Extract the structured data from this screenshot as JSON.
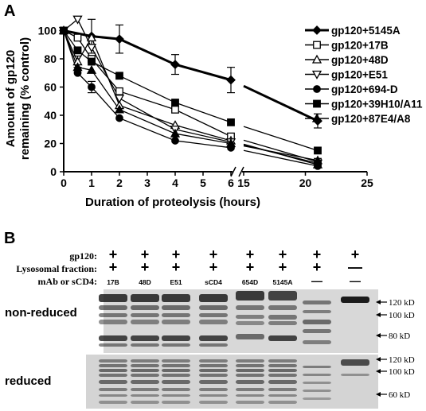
{
  "panel_a": {
    "letter": "A",
    "chart_data": {
      "type": "line",
      "xlabel": "Duration of proteolysis (hours)",
      "ylabel": "Amount of gp120 remaining (% control)",
      "ylabel_lines": [
        "Amount of gp120",
        "remaining (% control)"
      ],
      "xlim": [
        0,
        25
      ],
      "ylim": [
        0,
        100
      ],
      "x_axis_break": [
        6,
        15
      ],
      "x_ticks": [
        "0",
        "1",
        "2",
        "3",
        "4",
        "5",
        "6",
        "15",
        "20",
        "25"
      ],
      "x_tick_values": [
        0,
        1,
        2,
        3,
        4,
        5,
        6,
        15,
        20,
        25
      ],
      "y_ticks": [
        "0",
        "20",
        "40",
        "60",
        "80",
        "100"
      ],
      "y_tick_values": [
        0,
        20,
        40,
        60,
        80,
        100
      ],
      "grid": false,
      "legend_position": "right",
      "series": [
        {
          "name": "gp120+5145A",
          "marker": "diamond-filled",
          "x": [
            0,
            1,
            2,
            4,
            6,
            21
          ],
          "y": [
            100,
            96,
            94,
            76,
            65,
            36
          ],
          "err": [
            0,
            12,
            10,
            7,
            9,
            5
          ]
        },
        {
          "name": "gp120+17B",
          "marker": "square-open",
          "x": [
            0,
            0.5,
            1,
            2,
            4,
            6,
            21
          ],
          "y": [
            100,
            95,
            80,
            57,
            44,
            25,
            7
          ],
          "err": [
            0,
            0,
            0,
            0,
            0,
            0,
            0
          ]
        },
        {
          "name": "gp120+48D",
          "marker": "triangle-open",
          "x": [
            0,
            0.5,
            1,
            2,
            4,
            6,
            21
          ],
          "y": [
            100,
            78,
            95,
            47,
            33,
            22,
            5
          ],
          "err": [
            0,
            4,
            0,
            0,
            0,
            0,
            0
          ]
        },
        {
          "name": "gp120+E51",
          "marker": "triangle-down-open",
          "x": [
            0,
            0.5,
            1,
            2,
            4,
            6,
            21
          ],
          "y": [
            100,
            108,
            88,
            52,
            30,
            21,
            6
          ],
          "err": [
            0,
            0,
            0,
            0,
            0,
            0,
            0
          ]
        },
        {
          "name": "gp120+694-D",
          "marker": "circle-filled",
          "x": [
            0,
            0.5,
            1,
            2,
            4,
            6,
            21
          ],
          "y": [
            100,
            70,
            60,
            38,
            22,
            17,
            4
          ],
          "err": [
            0,
            0,
            4,
            0,
            0,
            0,
            0
          ]
        },
        {
          "name": "gp120+39H10/A11",
          "marker": "square-filled",
          "x": [
            0,
            0.5,
            1,
            2,
            4,
            6,
            21
          ],
          "y": [
            100,
            86,
            78,
            68,
            49,
            35,
            15
          ],
          "err": [
            0,
            0,
            0,
            0,
            0,
            0,
            0
          ]
        },
        {
          "name": "gp120+87E4/A8",
          "marker": "triangle-filled",
          "x": [
            0,
            0.5,
            1,
            2,
            4,
            6,
            21
          ],
          "y": [
            100,
            74,
            72,
            44,
            27,
            20,
            8
          ],
          "err": [
            0,
            0,
            0,
            0,
            0,
            0,
            0
          ]
        }
      ]
    }
  },
  "panel_b": {
    "letter": "B",
    "row_labels": [
      "gp120:",
      "Lysosomal fraction:",
      "mAb or sCD4:"
    ],
    "lanes": [
      {
        "gp120": "+",
        "lyso": "+",
        "mab": "17B"
      },
      {
        "gp120": "+",
        "lyso": "+",
        "mab": "48D"
      },
      {
        "gp120": "+",
        "lyso": "+",
        "mab": "E51"
      },
      {
        "gp120": "+",
        "lyso": "+",
        "mab": "sCD4"
      },
      {
        "gp120": "+",
        "lyso": "+",
        "mab": "654D"
      },
      {
        "gp120": "+",
        "lyso": "+",
        "mab": "5145A"
      },
      {
        "gp120": "+",
        "lyso": "+",
        "mab": "—"
      },
      {
        "gp120": "+",
        "lyso": "—",
        "mab": "—"
      }
    ],
    "gels": [
      {
        "label": "non-reduced",
        "markers": [
          "120 kD",
          "100 kD",
          "80 kD"
        ]
      },
      {
        "label": "reduced",
        "markers": [
          "120 kD",
          "100 kD",
          "60 kD"
        ]
      }
    ]
  }
}
